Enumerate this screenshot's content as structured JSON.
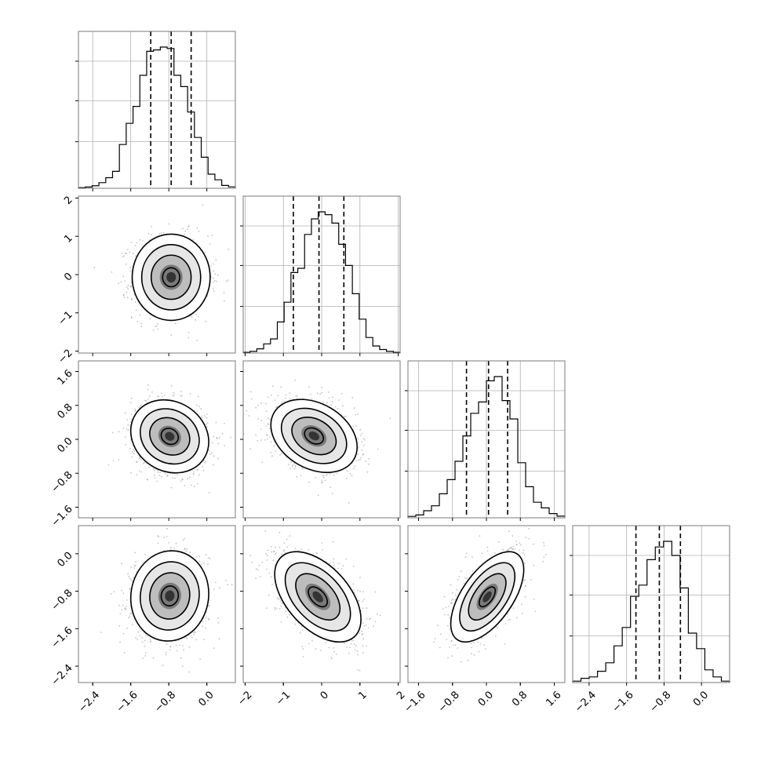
{
  "chart_data": {
    "type": "corner",
    "variables": 4,
    "grid": true,
    "colors": {
      "line": "#000000",
      "grid": "#b0b0b0",
      "frame": "#7a7a7a"
    },
    "quantile_lines": "dashed",
    "density_levels": 4,
    "ranges": [
      [
        -2.7,
        0.6
      ],
      [
        -2.05,
        2.05
      ],
      [
        -1.85,
        1.85
      ],
      [
        -2.75,
        0.6
      ]
    ],
    "ticks": [
      [
        -2.4,
        -1.6,
        -0.8,
        0.0
      ],
      [
        -2,
        -1,
        0,
        1,
        2
      ],
      [
        -1.6,
        -0.8,
        0.0,
        0.8,
        1.6
      ],
      [
        -2.4,
        -1.6,
        -0.8,
        0.0
      ]
    ],
    "tick_labels": [
      [
        "−2.4",
        "−1.6",
        "−0.8",
        "0.0"
      ],
      [
        "−2",
        "−1",
        "0",
        "1",
        "2"
      ],
      [
        "−1.6",
        "−0.8",
        "0.0",
        "0.8",
        "1.6"
      ],
      [
        "−2.4",
        "−1.6",
        "−0.8",
        "0.0"
      ]
    ],
    "quantiles": [
      [
        -1.18,
        -0.75,
        -0.33
      ],
      [
        -0.74,
        -0.07,
        0.58
      ],
      [
        -0.47,
        0.05,
        0.5
      ],
      [
        -1.4,
        -0.9,
        -0.45
      ]
    ],
    "marginals": [
      [
        0.004,
        0.009,
        0.018,
        0.04,
        0.075,
        0.12,
        0.31,
        0.46,
        0.58,
        0.8,
        0.97,
        0.98,
        1.0,
        0.99,
        0.8,
        0.72,
        0.54,
        0.36,
        0.22,
        0.1,
        0.06,
        0.02,
        0.01
      ],
      [
        0.005,
        0.012,
        0.03,
        0.065,
        0.1,
        0.22,
        0.36,
        0.57,
        0.6,
        0.84,
        0.95,
        1.0,
        0.98,
        0.92,
        0.77,
        0.62,
        0.42,
        0.24,
        0.11,
        0.05,
        0.025,
        0.012,
        0.005
      ],
      [
        0.01,
        0.02,
        0.05,
        0.085,
        0.17,
        0.27,
        0.4,
        0.58,
        0.74,
        0.82,
        0.97,
        1.0,
        0.83,
        0.7,
        0.39,
        0.22,
        0.11,
        0.07,
        0.03,
        0.012
      ],
      [
        0.01,
        0.03,
        0.04,
        0.08,
        0.14,
        0.26,
        0.39,
        0.61,
        0.69,
        0.87,
        0.96,
        1.0,
        0.9,
        0.67,
        0.35,
        0.24,
        0.09,
        0.04,
        0.01
      ]
    ],
    "pairs": [
      {
        "row": 1,
        "col": 0,
        "mean": [
          -0.75,
          -0.07
        ],
        "std": [
          0.4,
          0.55
        ],
        "corr": 0.0
      },
      {
        "row": 2,
        "col": 0,
        "mean": [
          -0.78,
          0.07
        ],
        "std": [
          0.4,
          0.42
        ],
        "corr": -0.15
      },
      {
        "row": 2,
        "col": 1,
        "mean": [
          -0.2,
          0.08
        ],
        "std": [
          0.55,
          0.42
        ],
        "corr": -0.3
      },
      {
        "row": 3,
        "col": 0,
        "mean": [
          -0.78,
          -0.9
        ],
        "std": [
          0.4,
          0.47
        ],
        "corr": 0.05
      },
      {
        "row": 3,
        "col": 1,
        "mean": [
          -0.1,
          -0.92
        ],
        "std": [
          0.55,
          0.47
        ],
        "corr": -0.5
      },
      {
        "row": 3,
        "col": 2,
        "mean": [
          0.02,
          -0.92
        ],
        "std": [
          0.42,
          0.47
        ],
        "corr": 0.6
      }
    ]
  }
}
